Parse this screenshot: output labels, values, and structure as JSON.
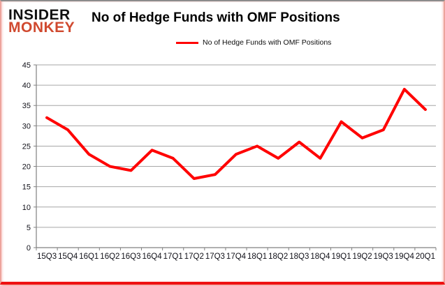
{
  "header": {
    "logo_line1": "INSIDER",
    "logo_line2": "MONKEY",
    "title": "No of Hedge Funds with OMF Positions"
  },
  "legend": {
    "label": "No of Hedge Funds with OMF Positions"
  },
  "chart_data": {
    "type": "line",
    "title": "No of Hedge Funds with OMF Positions",
    "series_name": "No of Hedge Funds with OMF Positions",
    "categories": [
      "15Q3",
      "15Q4",
      "16Q1",
      "16Q2",
      "16Q3",
      "16Q4",
      "17Q1",
      "17Q2",
      "17Q3",
      "17Q4",
      "18Q1",
      "18Q2",
      "18Q3",
      "18Q4",
      "19Q1",
      "19Q2",
      "19Q3",
      "19Q4",
      "20Q1"
    ],
    "values": [
      32,
      29,
      23,
      20,
      19,
      24,
      22,
      17,
      18,
      23,
      25,
      22,
      26,
      22,
      31,
      27,
      29,
      39,
      34
    ],
    "xlabel": "",
    "ylabel": "",
    "ylim": [
      0,
      45
    ],
    "ytick_step": 5,
    "grid": true,
    "legend_position": "top"
  },
  "colors": {
    "line_red": "#ff0000",
    "logo_red": "#d0492f",
    "border_red": "#ee1111",
    "grid_gray": "#a6a6a6",
    "axis_gray": "#808080",
    "text_black": "#000000"
  }
}
